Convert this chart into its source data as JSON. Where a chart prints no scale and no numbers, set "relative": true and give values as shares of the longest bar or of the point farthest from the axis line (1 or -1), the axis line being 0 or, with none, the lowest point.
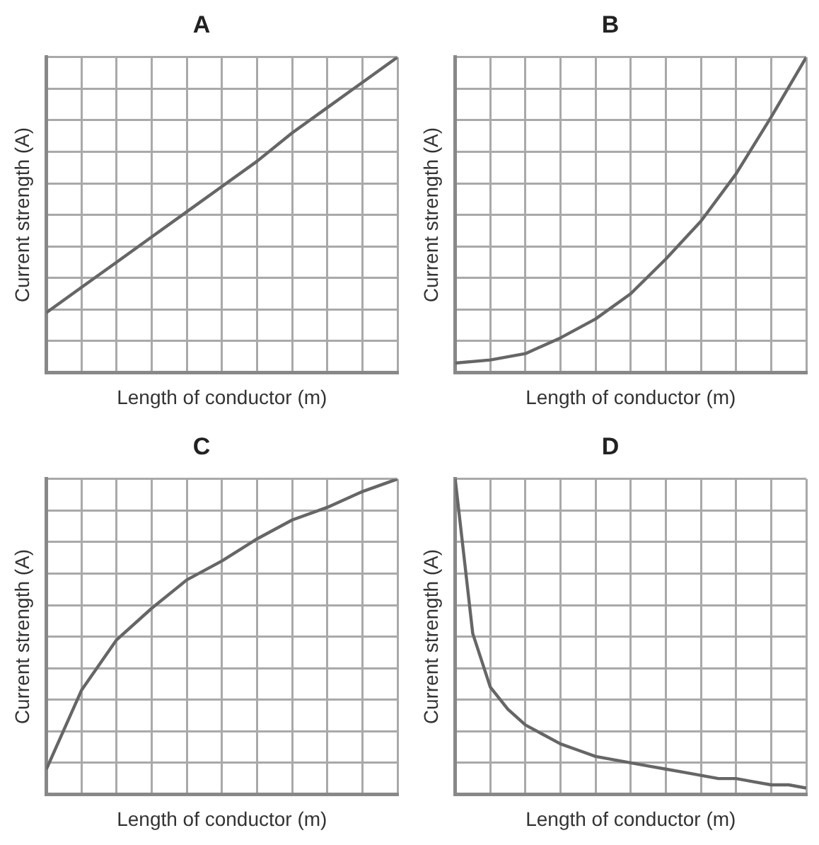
{
  "chart_data": [
    {
      "type": "line",
      "title": "A",
      "xlabel": "Length of conductor (m)",
      "ylabel": "Current strength (A)",
      "relative": true,
      "grid": true,
      "categories": [
        null,
        null,
        null,
        null,
        null,
        null,
        null,
        null,
        null,
        null,
        null
      ],
      "series": [
        {
          "color": "#666666",
          "values": [
            0.19,
            0.27,
            0.35,
            0.43,
            0.51,
            0.59,
            0.67,
            0.76,
            0.84,
            0.92,
            1
          ]
        }
      ]
    },
    {
      "type": "line",
      "title": "B",
      "xlabel": "Length of conductor (m)",
      "ylabel": "Current strength (A)",
      "relative": true,
      "grid": true,
      "categories": [
        null,
        null,
        null,
        null,
        null,
        null,
        null,
        null,
        null,
        null,
        null
      ],
      "series": [
        {
          "color": "#666666",
          "values": [
            0.03,
            0.04,
            0.06,
            0.11,
            0.17,
            0.25,
            0.36,
            0.48,
            0.63,
            0.81,
            1
          ]
        }
      ]
    },
    {
      "type": "line",
      "title": "C",
      "xlabel": "Length of conductor (m)",
      "ylabel": "Current strength (A)",
      "relative": true,
      "grid": true,
      "categories": [
        null,
        null,
        null,
        null,
        null,
        null,
        null,
        null,
        null,
        null,
        null
      ],
      "series": [
        {
          "color": "#666666",
          "values": [
            0.08,
            0.33,
            0.49,
            0.59,
            0.68,
            0.74,
            0.81,
            0.87,
            0.91,
            0.96,
            1
          ]
        }
      ]
    },
    {
      "type": "line",
      "title": "D",
      "xlabel": "Length of conductor (m)",
      "ylabel": "Current strength (A)",
      "relative": true,
      "grid": true,
      "categories": [
        null,
        null,
        null,
        null,
        null,
        null,
        null,
        null,
        null,
        null,
        null,
        null,
        null,
        null,
        null,
        null,
        null,
        null,
        null,
        null,
        null
      ],
      "series": [
        {
          "color": "#666666",
          "values": [
            1,
            0.51,
            0.34,
            0.27,
            0.22,
            0.19,
            0.16,
            0.14,
            0.12,
            0.11,
            0.1,
            0.09,
            0.08,
            0.07,
            0.06,
            0.05,
            0.05,
            0.04,
            0.03,
            0.03,
            0.02
          ]
        }
      ]
    }
  ]
}
